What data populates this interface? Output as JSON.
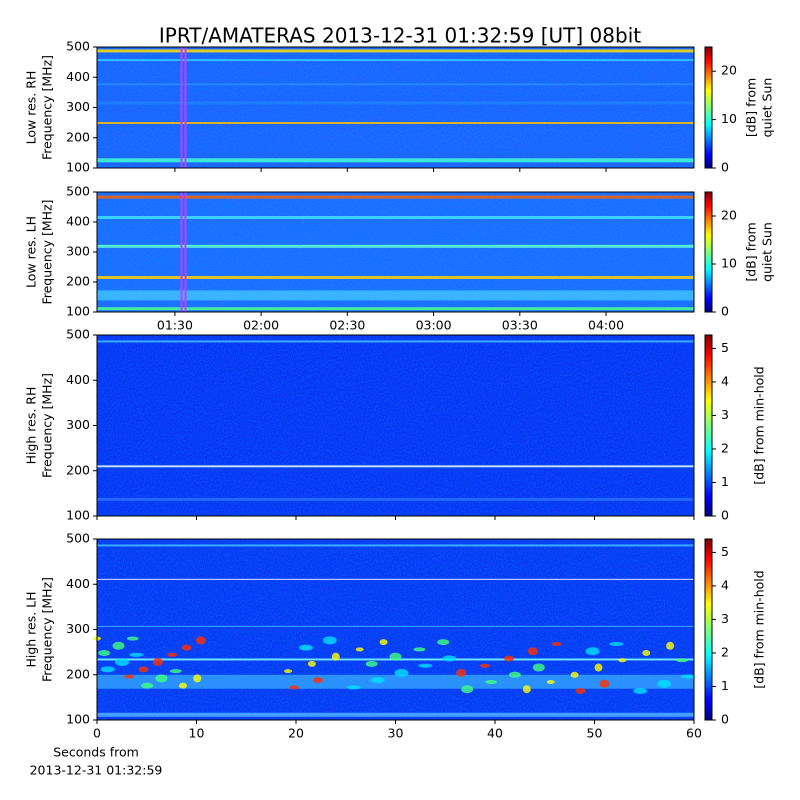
{
  "chart_data": [
    {
      "type": "heatmap",
      "title": "IPRT/AMATERAS 2013-12-31 01:32:59 [UT]   08bit",
      "ylabel": [
        "Low res. RH",
        "Frequency [MHz]"
      ],
      "ylim": [
        100,
        500
      ],
      "yticks": [
        100,
        200,
        300,
        400,
        500
      ],
      "xlim": [
        62.9,
        270.6
      ],
      "marker_x": 92.98,
      "marker_color": "#c040ff",
      "colorbar": {
        "label": [
          "[dB] from",
          "quiet Sun"
        ],
        "lim": [
          0,
          25
        ],
        "ticks": [
          0,
          10,
          20
        ],
        "colormap": "jet"
      }
    },
    {
      "type": "heatmap",
      "ylabel": [
        "Low res. LH",
        "Frequency [MHz]"
      ],
      "ylim": [
        100,
        500
      ],
      "yticks": [
        100,
        200,
        300,
        400,
        500
      ],
      "xlim": [
        62.9,
        270.6
      ],
      "xticks": [
        {
          "value": 90,
          "label": "01:30"
        },
        {
          "value": 120,
          "label": "02:00"
        },
        {
          "value": 150,
          "label": "02:30"
        },
        {
          "value": 180,
          "label": "03:00"
        },
        {
          "value": 210,
          "label": "03:30"
        },
        {
          "value": 240,
          "label": "04:00"
        }
      ],
      "marker_x": 92.98,
      "marker_color": "#c040ff",
      "colorbar": {
        "label": [
          "[dB] from",
          "quiet Sun"
        ],
        "lim": [
          0,
          25
        ],
        "ticks": [
          0,
          10,
          20
        ],
        "colormap": "jet"
      }
    },
    {
      "type": "heatmap",
      "ylabel": [
        "High res. RH",
        "Frequency [MHz]"
      ],
      "ylim": [
        100,
        500
      ],
      "yticks": [
        100,
        200,
        300,
        400,
        500
      ],
      "xlim": [
        0,
        60
      ],
      "colorbar": {
        "label": [
          "[dB] from min-hold"
        ],
        "lim": [
          0,
          5.4
        ],
        "ticks": [
          0,
          1,
          2,
          3,
          4,
          5
        ],
        "colormap": "jet"
      }
    },
    {
      "type": "heatmap",
      "ylabel": [
        "High res. LH",
        "Frequency [MHz]"
      ],
      "ylim": [
        100,
        500
      ],
      "yticks": [
        100,
        200,
        300,
        400,
        500
      ],
      "xlim": [
        0,
        60
      ],
      "xticks": [
        0,
        10,
        20,
        30,
        40,
        50,
        60
      ],
      "xlabel": [
        "Seconds from",
        "2013-12-31 01:32:59"
      ],
      "colorbar": {
        "label": [
          "[dB] from min-hold"
        ],
        "lim": [
          0,
          5.4
        ],
        "ticks": [
          0,
          1,
          2,
          3,
          4,
          5
        ],
        "colormap": "jet"
      }
    }
  ]
}
